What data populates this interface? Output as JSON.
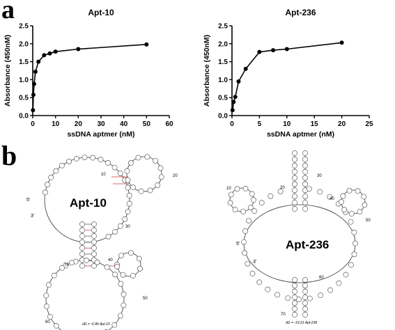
{
  "panels": {
    "a_label": "a",
    "b_label": "b"
  },
  "chart_data": [
    {
      "type": "line",
      "title": "Apt-10",
      "xlabel": "ssDNA aptmer (nM)",
      "ylabel": "Absorbance (450nM)",
      "xlim": [
        0,
        60
      ],
      "ylim": [
        0,
        2.5
      ],
      "xticks": [
        0,
        10,
        20,
        30,
        40,
        50,
        60
      ],
      "yticks": [
        0.0,
        0.5,
        1.0,
        1.5,
        2.0,
        2.5
      ],
      "grid": false,
      "series": [
        {
          "x": [
            0.1,
            0.3,
            0.6,
            1.2,
            2.5,
            5,
            7.5,
            10,
            20,
            50
          ],
          "y": [
            0.15,
            0.58,
            0.88,
            1.22,
            1.5,
            1.68,
            1.73,
            1.78,
            1.85,
            1.98
          ]
        }
      ]
    },
    {
      "type": "line",
      "title": "Apt-236",
      "xlabel": "ssDNA aptmer (nM)",
      "ylabel": "Absorbance (450nM)",
      "xlim": [
        0,
        25
      ],
      "ylim": [
        0,
        2.5
      ],
      "xticks": [
        0,
        5,
        10,
        15,
        20,
        25
      ],
      "yticks": [
        0.0,
        0.5,
        1.0,
        1.5,
        2.0,
        2.5
      ],
      "grid": false,
      "series": [
        {
          "x": [
            0.1,
            0.3,
            0.6,
            1.2,
            2.5,
            5,
            7.5,
            10,
            20
          ],
          "y": [
            0.15,
            0.38,
            0.52,
            0.95,
            1.3,
            1.77,
            1.82,
            1.85,
            2.03
          ]
        }
      ]
    }
  ],
  "structures": {
    "apt10": {
      "name": "Apt-10",
      "five_prime": "5'",
      "three_prime": "3'",
      "energy": "dG = -6.86 Apt-10",
      "numbers": [
        "10",
        "20",
        "30",
        "40",
        "50",
        "60",
        "70"
      ]
    },
    "apt236": {
      "name": "Apt-236",
      "five_prime": "5'",
      "three_prime": "3'",
      "energy": "dG = -19.21 Apt-236",
      "numbers": [
        "10",
        "20",
        "30",
        "40",
        "50",
        "60",
        "70"
      ]
    }
  }
}
